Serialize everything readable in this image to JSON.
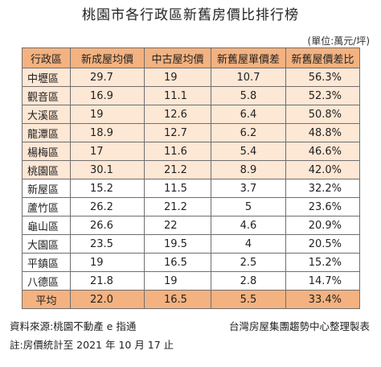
{
  "title": "桃園市各行政區新舊房價比排行榜",
  "unit": "(單位:萬元/坪)",
  "table": {
    "headers": [
      "行政區",
      "新成屋均價",
      "中古屋均價",
      "新舊屋單價差",
      "新舊屋價差比"
    ],
    "rows": [
      {
        "district": "中壢區",
        "new_price": "29.7",
        "used_price": "19",
        "diff": "10.7",
        "ratio": "56.3%"
      },
      {
        "district": "觀音區",
        "new_price": "16.9",
        "used_price": "11.1",
        "diff": "5.8",
        "ratio": "52.3%"
      },
      {
        "district": "大溪區",
        "new_price": "19",
        "used_price": "12.6",
        "diff": "6.4",
        "ratio": "50.8%"
      },
      {
        "district": "龍潭區",
        "new_price": "18.9",
        "used_price": "12.7",
        "diff": "6.2",
        "ratio": "48.8%"
      },
      {
        "district": "楊梅區",
        "new_price": "17",
        "used_price": "11.6",
        "diff": "5.4",
        "ratio": "46.6%"
      },
      {
        "district": "桃園區",
        "new_price": "30.1",
        "used_price": "21.2",
        "diff": "8.9",
        "ratio": "42.0%"
      },
      {
        "district": "新屋區",
        "new_price": "15.2",
        "used_price": "11.5",
        "diff": "3.7",
        "ratio": "32.2%"
      },
      {
        "district": "蘆竹區",
        "new_price": "26.2",
        "used_price": "21.2",
        "diff": "5",
        "ratio": "23.6%"
      },
      {
        "district": "龜山區",
        "new_price": "26.6",
        "used_price": "22",
        "diff": "4.6",
        "ratio": "20.9%"
      },
      {
        "district": "大園區",
        "new_price": "23.5",
        "used_price": "19.5",
        "diff": "4",
        "ratio": "20.5%"
      },
      {
        "district": "平鎮區",
        "new_price": "19",
        "used_price": "16.5",
        "diff": "2.5",
        "ratio": "15.2%"
      },
      {
        "district": "八德區",
        "new_price": "21.8",
        "used_price": "19",
        "diff": "2.8",
        "ratio": "14.7%"
      }
    ],
    "average": {
      "district": "平均",
      "new_price": "22.0",
      "used_price": "16.5",
      "diff": "5.5",
      "ratio": "33.4%"
    }
  },
  "notes": {
    "source": "資料來源:桃園不動產 e 指通",
    "producer": "台灣房屋集團趨勢中心整理製表",
    "remark": "註:房價統計至 2021 年 10 月 17 止"
  },
  "colors": {
    "header_bg": "#f3b280",
    "shaded_row_bg": "#fde7d5",
    "border": "#6f6f6f"
  }
}
